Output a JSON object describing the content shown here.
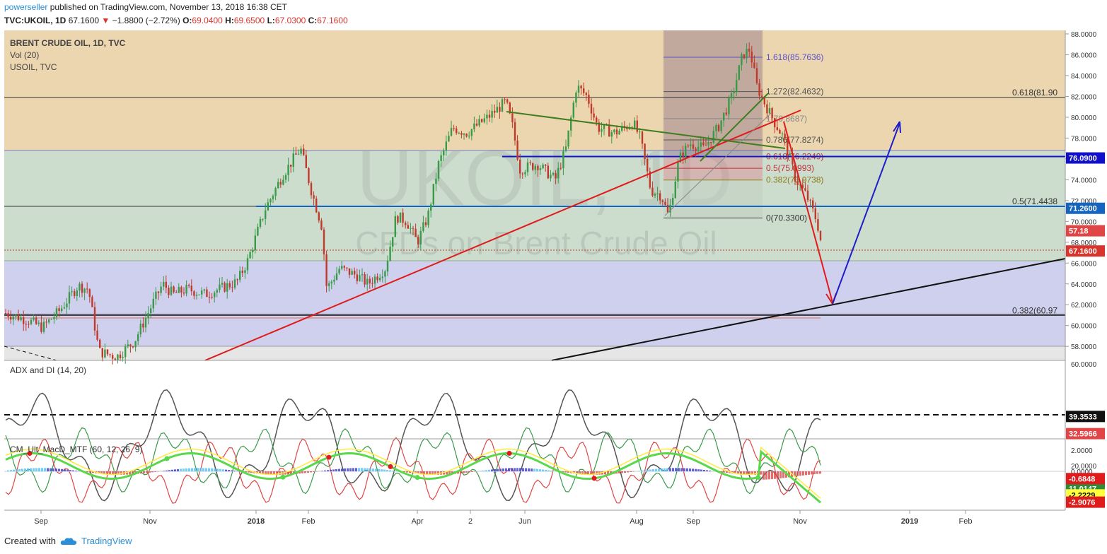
{
  "header": {
    "publisher": "powerseller",
    "published_text": " published on TradingView.com, November 13, 2018 16:38 CET",
    "symbol": "TVC:UKOIL, 1D",
    "last": "67.1600",
    "change": "−1.8800 (−2.72%)",
    "ohlc_o_label": "O:",
    "ohlc_o": "69.0400",
    "ohlc_h_label": "H:",
    "ohlc_h": "69.6500",
    "ohlc_l_label": "L:",
    "ohlc_l": "67.0300",
    "ohlc_c_label": "C:",
    "ohlc_c": "67.1600"
  },
  "legend": {
    "line1": "BRENT CRUDE OIL, 1D, TVC",
    "line2": "Vol (20)",
    "line3": "USOIL, TVC"
  },
  "watermark": {
    "big": "UKOIL, 1D",
    "small": "CFDs on Brent Crude Oil"
  },
  "colors": {
    "zone_upper": "#ecd6b0",
    "zone_mid": "#ccdccd",
    "zone_lower": "#cfd0ee",
    "zone_bottom": "#e6e6e6",
    "up_candle": "#3a9a4a",
    "down_candle": "#c0392b",
    "trend_red": "#e01b1b",
    "trend_green": "#3f7d1e",
    "projection_red": "#e01b1b",
    "projection_blue": "#1e1ec8",
    "level_blue": "#1010c8"
  },
  "price_axis": {
    "ticks": [
      "88.0000",
      "86.0000",
      "84.0000",
      "82.0000",
      "80.0000",
      "78.0000",
      "76.0000",
      "74.0000",
      "72.0000",
      "70.0000",
      "68.0000",
      "66.0000",
      "64.0000",
      "62.0000",
      "60.0000",
      "58.0000"
    ],
    "tags": [
      {
        "text": "76.0900",
        "price": 76.09,
        "bg": "#1010c8",
        "fg": "#ffffff"
      },
      {
        "text": "71.2600",
        "price": 71.26,
        "bg": "#1565c0",
        "fg": "#ffffff"
      },
      {
        "text": "57.18",
        "price": 69.1,
        "bg": "#e04646",
        "fg": "#ffffff"
      },
      {
        "text": "67.1600",
        "price": 67.16,
        "bg": "#d9342b",
        "fg": "#ffffff"
      }
    ]
  },
  "time_axis": [
    "Sep",
    "Nov",
    "2018",
    "Feb",
    "Apr",
    "2",
    "Jun",
    "Aug",
    "Sep",
    "Nov",
    "2019",
    "Feb"
  ],
  "fib_box": {
    "levels": [
      {
        "label": "1.618(85.7636)",
        "price": 85.7636,
        "color": "#5b52c8"
      },
      {
        "label": "1.272(82.4632)",
        "price": 82.4632,
        "color": "#555555"
      },
      {
        "label": "1(79.8687)",
        "price": 79.8687,
        "color": "#888888"
      },
      {
        "label": "0.786(77.8274)",
        "price": 77.8274,
        "color": "#555555"
      },
      {
        "label": "0.618(76.2249)",
        "price": 76.2249,
        "color": "#c0303a"
      },
      {
        "label": "0.5(75.0993)",
        "price": 75.0993,
        "color": "#c0303a"
      },
      {
        "label": "0.382(73.9738)",
        "price": 73.9738,
        "color": "#8a7a1a"
      },
      {
        "label": "0(70.3300)",
        "price": 70.33,
        "color": "#333333"
      }
    ]
  },
  "long_fib": [
    {
      "label": "0.618(81.90",
      "price": 81.9
    },
    {
      "label": "0.5(71.4438",
      "price": 71.4438
    },
    {
      "label": "0.382(60.97",
      "price": 60.97
    }
  ],
  "indicators": {
    "adx_title": "ADX and DI (14, 20)",
    "adx_ticks": [
      "60.0000",
      "20.0000"
    ],
    "adx_tags": [
      {
        "text": "39.3533",
        "bg": "#111111",
        "fg": "#ffffff",
        "level": 39.35
      },
      {
        "text": "32.5966",
        "bg": "#e04646",
        "fg": "#ffffff",
        "level": 32.6
      },
      {
        "text": "11.0147",
        "bg": "#2e8b3a",
        "fg": "#ffffff",
        "level": 11.01
      }
    ],
    "macd_title": "CM_Ult_MacD_MTF (60, 12, 26, 9)",
    "macd_ticks": [
      "2.0000",
      "0.0000"
    ],
    "macd_tags": [
      {
        "text": "-0.6848",
        "bg": "#e01b1b",
        "fg": "#ffffff",
        "level": -0.6848
      },
      {
        "text": "-2.2229",
        "bg": "#ffff3c",
        "fg": "#111111",
        "level": -2.2229
      },
      {
        "text": "-2.9076",
        "bg": "#e01b1b",
        "fg": "#ffffff",
        "level": -2.9076
      }
    ]
  },
  "footer": {
    "created_with": "Created with",
    "brand": "TradingView"
  },
  "chart_data": [
    {
      "type": "candlestick",
      "title": "BRENT CRUDE OIL, 1D, TVC",
      "ylim": [
        56.5,
        88.5
      ],
      "x_range": [
        "2017-08-10",
        "2019-03-10"
      ],
      "key_prices": {
        "last": 67.16,
        "high": 86.74,
        "low_before_rally": 61.8
      },
      "annotations": [
        "red downtrend projection to ~62",
        "blue upward projection to ~79.5"
      ]
    },
    {
      "type": "line",
      "title": "ADX and DI (14, 20)",
      "series": [
        {
          "name": "ADX",
          "last": 39.3533
        },
        {
          "name": "DI+",
          "last": 11.0147
        },
        {
          "name": "DI-",
          "last": 32.5966
        }
      ],
      "ylim": [
        0,
        60
      ]
    },
    {
      "type": "line",
      "title": "CM_Ult_MacD_MTF (60, 12, 26, 9)",
      "series": [
        {
          "name": "MACD",
          "last": -2.9076
        },
        {
          "name": "Signal",
          "last": -2.2229
        },
        {
          "name": "Histogram",
          "last": -0.6848
        }
      ]
    }
  ]
}
